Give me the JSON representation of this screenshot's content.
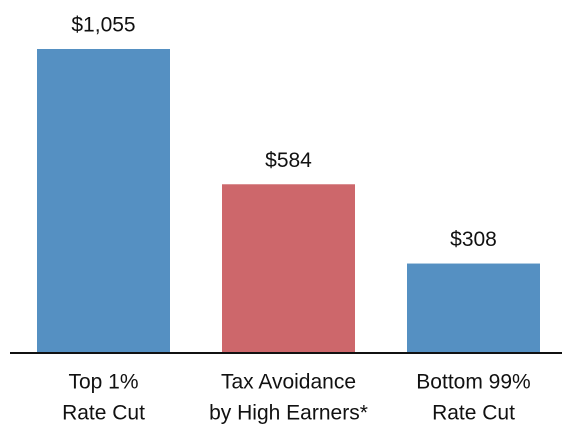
{
  "chart_data": {
    "type": "bar",
    "categories": [
      [
        "Top 1%",
        "Rate Cut"
      ],
      [
        "Tax Avoidance",
        "by High Earners*"
      ],
      [
        "Bottom 99%",
        "Rate Cut"
      ]
    ],
    "values": [
      1055,
      584,
      308
    ],
    "value_labels": [
      "$1,055",
      "$584",
      "$308"
    ],
    "colors": [
      "#5590c2",
      "#cd676b",
      "#5590c2"
    ]
  }
}
